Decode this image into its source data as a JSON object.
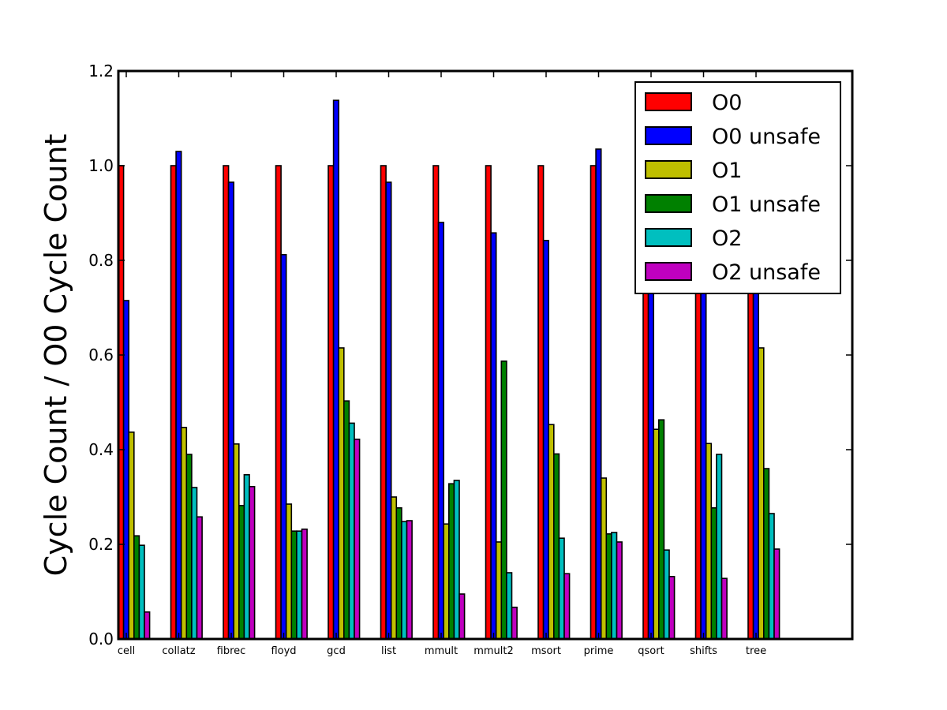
{
  "chart_data": {
    "type": "bar",
    "title": "",
    "xlabel": "",
    "ylabel": "Cycle Count / O0 Cycle Count",
    "ylim": [
      0.0,
      1.2
    ],
    "yticks": [
      "0.0",
      "0.2",
      "0.4",
      "0.6",
      "0.8",
      "1.0",
      "1.2"
    ],
    "grid": false,
    "legend_position": "top-right",
    "categories": [
      "cell",
      "collatz",
      "fibrec",
      "floyd",
      "gcd",
      "list",
      "mmult",
      "mmult2",
      "msort",
      "prime",
      "qsort",
      "shifts",
      "tree"
    ],
    "series": [
      {
        "name": "O0",
        "color": "#ff0000",
        "values": [
          1.0,
          1.0,
          1.0,
          1.0,
          1.0,
          1.0,
          1.0,
          1.0,
          1.0,
          1.0,
          1.0,
          1.0,
          1.0
        ]
      },
      {
        "name": "O0 unsafe",
        "color": "#0000ff",
        "values": [
          0.715,
          1.03,
          0.965,
          0.812,
          1.138,
          0.965,
          0.88,
          0.858,
          0.842,
          1.035,
          0.73,
          0.87,
          0.74
        ]
      },
      {
        "name": "O1",
        "color": "#bfbf00",
        "values": [
          0.437,
          0.447,
          0.412,
          0.285,
          0.615,
          0.3,
          0.243,
          0.205,
          0.453,
          0.34,
          0.443,
          0.413,
          0.615
        ]
      },
      {
        "name": "O1 unsafe",
        "color": "#008000",
        "values": [
          0.218,
          0.39,
          0.282,
          0.228,
          0.503,
          0.277,
          0.328,
          0.587,
          0.391,
          0.222,
          0.463,
          0.277,
          0.36
        ]
      },
      {
        "name": "O2",
        "color": "#00bfbf",
        "values": [
          0.198,
          0.32,
          0.347,
          0.228,
          0.456,
          0.248,
          0.335,
          0.14,
          0.213,
          0.225,
          0.188,
          0.39,
          0.265
        ]
      },
      {
        "name": "O2 unsafe",
        "color": "#bf00bf",
        "values": [
          0.057,
          0.258,
          0.322,
          0.232,
          0.422,
          0.25,
          0.095,
          0.067,
          0.138,
          0.205,
          0.132,
          0.128,
          0.19
        ]
      }
    ]
  }
}
